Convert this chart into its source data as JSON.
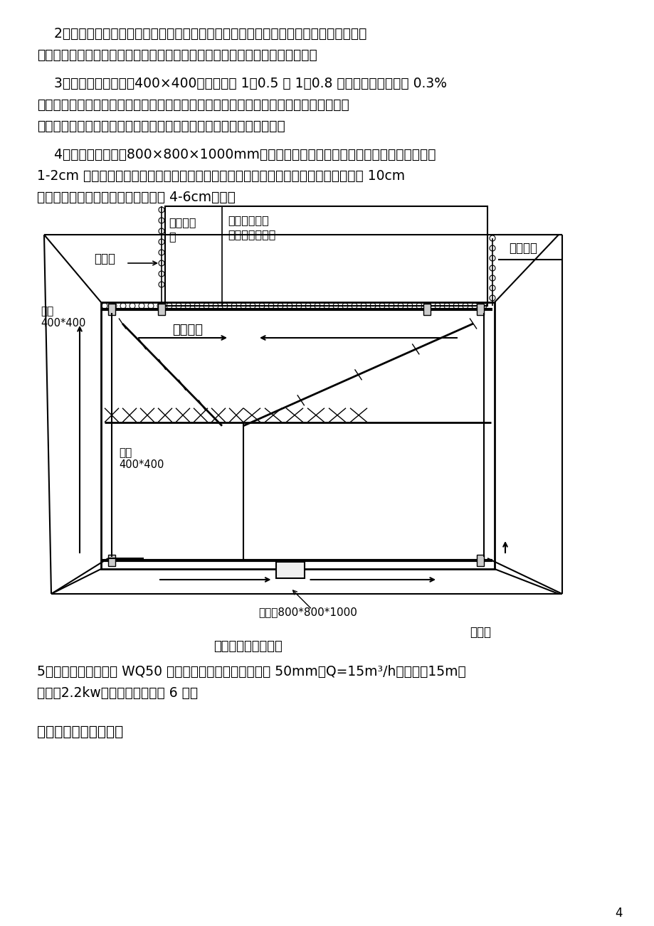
{
  "page_bg": "#ffffff",
  "text_color": "#000000",
  "para1": "    2）施工时，沿周边设置明沟，基坑的一端开挖至标高后，就立即挖明沟。建筑物四角及",
  "para1b": "长边中部各设一个集水井，使地下水汇流于集水井内，用水泵将水抽出基坑外。",
  "para2": "    3）排水明沟尺寸为：400×400。水沟设有 1：0.5 或 1：0.8 的边坡。排水沟具有 0.3%",
  "para2b": "的纵坡，使水流不致阻滞而淤塞。随挖土随加深排水沟和集水井，保持水流畅通。基坑中",
  "para2c": "间垫层下部采用盲沟排水，盲沟内用毛石堆砌，上部用防水卷材覆盖，",
  "para3": "    4）集水井尺寸为：800×800×1000mm，集水井的内壁为干砌砖壁，半砖厚，砖间可留有",
  "para3b": "1-2cm 宽的缝隙，以便地下水透过砖缝渗入井内。在井的底部和砖壁的四周，均铺一层 10cm",
  "para3c": "厚的石块作为滤水层，石块的粒径为 4-6cm。如图",
  "caption_right": "明沟、",
  "caption_center": "盲沟及集水井布置图",
  "para5": "5）抽水设备采用采用 WQ50 型号电动潜污泵，出水管径为 50mm，Q=15m³/h，扬程：15m，",
  "para5b": "功率：2.2kw。四用两备，共计 6 台。",
  "heading2": "二、土方开挖施工方案",
  "page_num": "4"
}
